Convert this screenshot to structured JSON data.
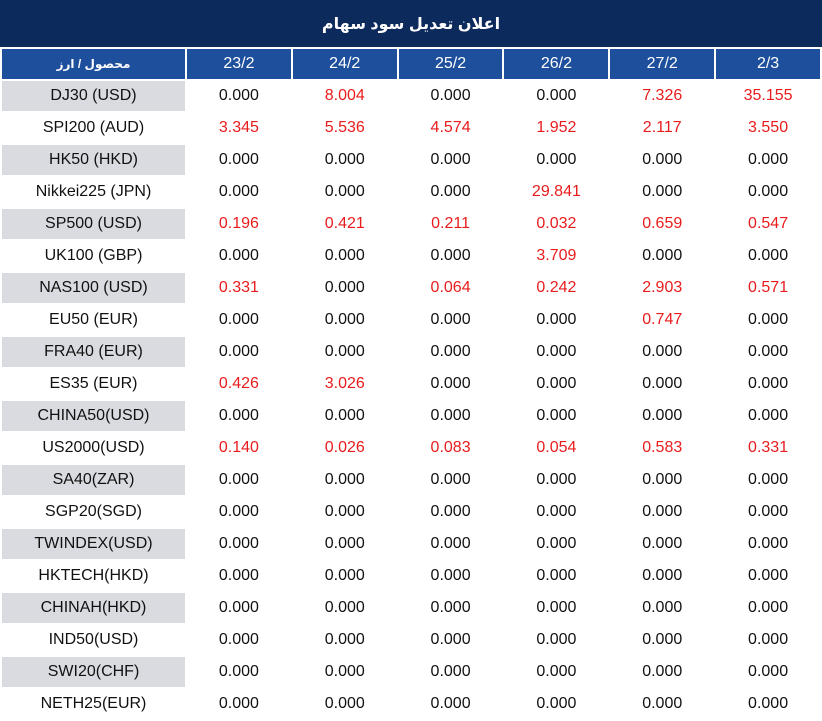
{
  "title": "اعلان تعدیل سود سهام",
  "header": {
    "symbol_label": "محصول / ارز",
    "dates": [
      "23/2",
      "24/2",
      "25/2",
      "26/2",
      "27/2",
      "2/3"
    ]
  },
  "colors": {
    "header_bg": "#0d2a5c",
    "column_header_bg": "#1e4f9c",
    "nonzero": "#e81c1c",
    "zebra": "#d9dbe0"
  },
  "rows": [
    {
      "symbol": "DJ30 (USD)",
      "values": [
        "0.000",
        "8.004",
        "0.000",
        "0.000",
        "7.326",
        "35.155"
      ]
    },
    {
      "symbol": "SPI200 (AUD)",
      "values": [
        "3.345",
        "5.536",
        "4.574",
        "1.952",
        "2.117",
        "3.550"
      ]
    },
    {
      "symbol": "HK50 (HKD)",
      "values": [
        "0.000",
        "0.000",
        "0.000",
        "0.000",
        "0.000",
        "0.000"
      ]
    },
    {
      "symbol": "Nikkei225 (JPN)",
      "values": [
        "0.000",
        "0.000",
        "0.000",
        "29.841",
        "0.000",
        "0.000"
      ]
    },
    {
      "symbol": "SP500 (USD)",
      "values": [
        "0.196",
        "0.421",
        "0.211",
        "0.032",
        "0.659",
        "0.547"
      ]
    },
    {
      "symbol": "UK100 (GBP)",
      "values": [
        "0.000",
        "0.000",
        "0.000",
        "3.709",
        "0.000",
        "0.000"
      ]
    },
    {
      "symbol": "NAS100 (USD)",
      "values": [
        "0.331",
        "0.000",
        "0.064",
        "0.242",
        "2.903",
        "0.571"
      ]
    },
    {
      "symbol": "EU50 (EUR)",
      "values": [
        "0.000",
        "0.000",
        "0.000",
        "0.000",
        "0.747",
        "0.000"
      ]
    },
    {
      "symbol": "FRA40 (EUR)",
      "values": [
        "0.000",
        "0.000",
        "0.000",
        "0.000",
        "0.000",
        "0.000"
      ]
    },
    {
      "symbol": "ES35 (EUR)",
      "values": [
        "0.426",
        "3.026",
        "0.000",
        "0.000",
        "0.000",
        "0.000"
      ]
    },
    {
      "symbol": "CHINA50(USD)",
      "values": [
        "0.000",
        "0.000",
        "0.000",
        "0.000",
        "0.000",
        "0.000"
      ]
    },
    {
      "symbol": "US2000(USD)",
      "values": [
        "0.140",
        "0.026",
        "0.083",
        "0.054",
        "0.583",
        "0.331"
      ]
    },
    {
      "symbol": "SA40(ZAR)",
      "values": [
        "0.000",
        "0.000",
        "0.000",
        "0.000",
        "0.000",
        "0.000"
      ]
    },
    {
      "symbol": "SGP20(SGD)",
      "values": [
        "0.000",
        "0.000",
        "0.000",
        "0.000",
        "0.000",
        "0.000"
      ]
    },
    {
      "symbol": "TWINDEX(USD)",
      "values": [
        "0.000",
        "0.000",
        "0.000",
        "0.000",
        "0.000",
        "0.000"
      ]
    },
    {
      "symbol": "HKTECH(HKD)",
      "values": [
        "0.000",
        "0.000",
        "0.000",
        "0.000",
        "0.000",
        "0.000"
      ]
    },
    {
      "symbol": "CHINAH(HKD)",
      "values": [
        "0.000",
        "0.000",
        "0.000",
        "0.000",
        "0.000",
        "0.000"
      ]
    },
    {
      "symbol": "IND50(USD)",
      "values": [
        "0.000",
        "0.000",
        "0.000",
        "0.000",
        "0.000",
        "0.000"
      ]
    },
    {
      "symbol": "SWI20(CHF)",
      "values": [
        "0.000",
        "0.000",
        "0.000",
        "0.000",
        "0.000",
        "0.000"
      ]
    },
    {
      "symbol": "NETH25(EUR)",
      "values": [
        "0.000",
        "0.000",
        "0.000",
        "0.000",
        "0.000",
        "0.000"
      ]
    }
  ]
}
